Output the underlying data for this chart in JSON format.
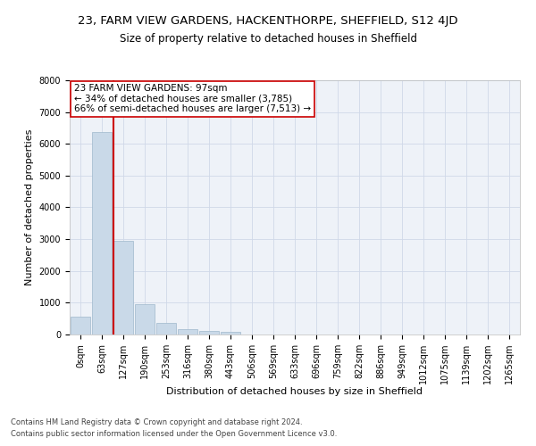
{
  "title_line1": "23, FARM VIEW GARDENS, HACKENTHORPE, SHEFFIELD, S12 4JD",
  "title_line2": "Size of property relative to detached houses in Sheffield",
  "xlabel": "Distribution of detached houses by size in Sheffield",
  "ylabel": "Number of detached properties",
  "footnote1": "Contains HM Land Registry data © Crown copyright and database right 2024.",
  "footnote2": "Contains public sector information licensed under the Open Government Licence v3.0.",
  "annotation_line1": "23 FARM VIEW GARDENS: 97sqm",
  "annotation_line2": "← 34% of detached houses are smaller (3,785)",
  "annotation_line3": "66% of semi-detached houses are larger (7,513) →",
  "property_sqm": 97,
  "bar_labels": [
    "0sqm",
    "63sqm",
    "127sqm",
    "190sqm",
    "253sqm",
    "316sqm",
    "380sqm",
    "443sqm",
    "506sqm",
    "569sqm",
    "633sqm",
    "696sqm",
    "759sqm",
    "822sqm",
    "886sqm",
    "949sqm",
    "1012sqm",
    "1075sqm",
    "1139sqm",
    "1202sqm",
    "1265sqm"
  ],
  "bar_values": [
    570,
    6380,
    2940,
    950,
    360,
    175,
    105,
    85,
    0,
    0,
    0,
    0,
    0,
    0,
    0,
    0,
    0,
    0,
    0,
    0,
    0
  ],
  "ylim": [
    0,
    8000
  ],
  "yticks": [
    0,
    1000,
    2000,
    3000,
    4000,
    5000,
    6000,
    7000,
    8000
  ],
  "bar_color": "#c9d9e8",
  "bar_edge_color": "#a0b8cc",
  "grid_color": "#d0d8e8",
  "marker_color": "#cc0000",
  "bg_color": "#eef2f8",
  "title1_fontsize": 9.5,
  "title2_fontsize": 8.5,
  "xlabel_fontsize": 8,
  "ylabel_fontsize": 8,
  "annotation_fontsize": 7.5,
  "tick_fontsize": 7,
  "footnote_fontsize": 6
}
